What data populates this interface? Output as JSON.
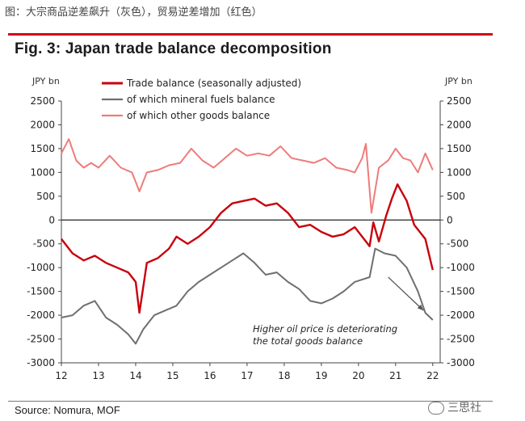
{
  "caption": "图：大宗商品逆差飙升（灰色），贸易逆差增加（红色）",
  "chart_data": {
    "type": "line",
    "title": "Fig. 3: Japan trade balance decomposition",
    "ylabel_left": "JPY bn",
    "ylabel_right": "JPY bn",
    "ylim": [
      -3000,
      2500
    ],
    "yticks": [
      2500,
      2000,
      1500,
      1000,
      500,
      0,
      -500,
      -1000,
      -1500,
      -2000,
      -2500,
      -3000
    ],
    "xlim": [
      2012,
      2022.2
    ],
    "xticks": [
      {
        "v": 2012,
        "label": "12"
      },
      {
        "v": 2013,
        "label": "13"
      },
      {
        "v": 2014,
        "label": "14"
      },
      {
        "v": 2015,
        "label": "15"
      },
      {
        "v": 2016,
        "label": "16"
      },
      {
        "v": 2017,
        "label": "17"
      },
      {
        "v": 2018,
        "label": "18"
      },
      {
        "v": 2019,
        "label": "19"
      },
      {
        "v": 2020,
        "label": "20"
      },
      {
        "v": 2021,
        "label": "21"
      },
      {
        "v": 2022,
        "label": "22"
      }
    ],
    "legend_position": "top-left",
    "series": [
      {
        "name": "Trade balance (seasonally adjusted)",
        "color": "#c8000a",
        "x": [
          2012.0,
          2012.3,
          2012.6,
          2012.9,
          2013.2,
          2013.5,
          2013.8,
          2014.0,
          2014.1,
          2014.3,
          2014.6,
          2014.9,
          2015.1,
          2015.4,
          2015.7,
          2016.0,
          2016.3,
          2016.6,
          2016.9,
          2017.2,
          2017.5,
          2017.8,
          2018.1,
          2018.4,
          2018.7,
          2019.0,
          2019.3,
          2019.6,
          2019.9,
          2020.1,
          2020.3,
          2020.4,
          2020.55,
          2020.75,
          2020.9,
          2021.05,
          2021.3,
          2021.5,
          2021.8,
          2022.0
        ],
        "y": [
          -400,
          -700,
          -850,
          -750,
          -900,
          -1000,
          -1100,
          -1300,
          -1950,
          -900,
          -800,
          -600,
          -350,
          -500,
          -350,
          -150,
          150,
          350,
          400,
          450,
          300,
          350,
          150,
          -150,
          -100,
          -250,
          -350,
          -300,
          -150,
          -350,
          -550,
          -50,
          -450,
          100,
          450,
          750,
          400,
          -100,
          -400,
          -1050
        ]
      },
      {
        "name": "of which mineral fuels balance",
        "color": "#6f6f6f",
        "x": [
          2012.0,
          2012.3,
          2012.6,
          2012.9,
          2013.2,
          2013.5,
          2013.8,
          2014.0,
          2014.2,
          2014.5,
          2014.8,
          2015.1,
          2015.4,
          2015.7,
          2016.0,
          2016.3,
          2016.6,
          2016.9,
          2017.2,
          2017.5,
          2017.8,
          2018.1,
          2018.4,
          2018.7,
          2019.0,
          2019.3,
          2019.6,
          2019.9,
          2020.1,
          2020.3,
          2020.45,
          2020.7,
          2021.0,
          2021.3,
          2021.6,
          2021.8,
          2022.0
        ],
        "y": [
          -2050,
          -2000,
          -1800,
          -1700,
          -2050,
          -2200,
          -2400,
          -2600,
          -2300,
          -2000,
          -1900,
          -1800,
          -1500,
          -1300,
          -1150,
          -1000,
          -850,
          -700,
          -900,
          -1150,
          -1100,
          -1300,
          -1450,
          -1700,
          -1750,
          -1650,
          -1500,
          -1300,
          -1250,
          -1200,
          -600,
          -700,
          -750,
          -1000,
          -1500,
          -1950,
          -2100
        ]
      },
      {
        "name": "of which other goods balance",
        "color": "#ef7b7b",
        "x": [
          2012.0,
          2012.2,
          2012.4,
          2012.6,
          2012.8,
          2013.0,
          2013.3,
          2013.6,
          2013.9,
          2014.1,
          2014.3,
          2014.6,
          2014.9,
          2015.2,
          2015.5,
          2015.8,
          2016.1,
          2016.4,
          2016.7,
          2017.0,
          2017.3,
          2017.6,
          2017.9,
          2018.2,
          2018.5,
          2018.8,
          2019.1,
          2019.4,
          2019.7,
          2019.9,
          2020.1,
          2020.2,
          2020.35,
          2020.55,
          2020.8,
          2021.0,
          2021.2,
          2021.4,
          2021.6,
          2021.8,
          2022.0
        ],
        "y": [
          1400,
          1700,
          1250,
          1100,
          1200,
          1100,
          1350,
          1100,
          1000,
          600,
          1000,
          1050,
          1150,
          1200,
          1500,
          1250,
          1100,
          1300,
          1500,
          1350,
          1400,
          1350,
          1550,
          1300,
          1250,
          1200,
          1300,
          1100,
          1050,
          1000,
          1300,
          1600,
          150,
          1100,
          1250,
          1500,
          1300,
          1250,
          1000,
          1400,
          1050
        ]
      }
    ],
    "annotation": {
      "lines": [
        "Higher oil price is deteriorating",
        "the total goods balance"
      ],
      "arrow_from": [
        2020.8,
        -1200
      ],
      "arrow_to": [
        2021.75,
        -1900
      ]
    }
  },
  "source": "Source: Nomura, MOF",
  "watermark": "三思社"
}
